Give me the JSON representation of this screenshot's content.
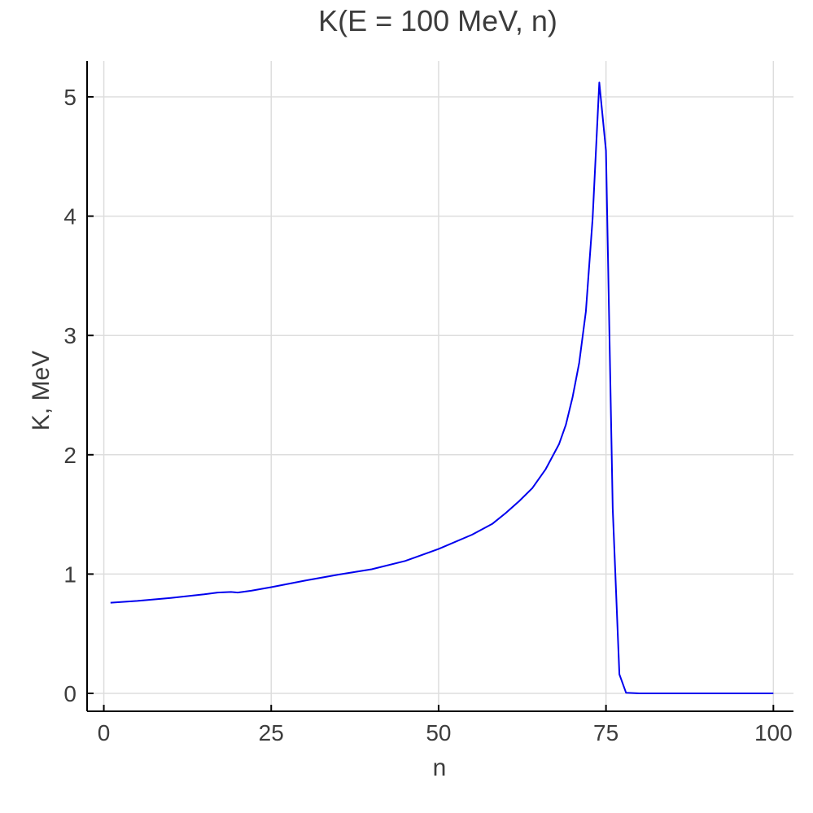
{
  "chart_data": {
    "type": "line",
    "title": "K(E = 100 MeV, n)",
    "xlabel": "n",
    "ylabel": "K, MeV",
    "xlim": [
      -2.5,
      103
    ],
    "ylim": [
      -0.15,
      5.3
    ],
    "grid": true,
    "x_ticks": [
      0,
      25,
      50,
      75,
      100
    ],
    "x_tick_labels": [
      "0",
      "25",
      "50",
      "75",
      "100"
    ],
    "y_ticks": [
      0,
      1,
      2,
      3,
      4,
      5
    ],
    "y_tick_labels": [
      "0",
      "1",
      "2",
      "3",
      "4",
      "5"
    ],
    "series": [
      {
        "color": "#0000ee",
        "x": [
          1,
          5,
          10,
          15,
          17,
          19,
          20,
          22,
          25,
          30,
          35,
          40,
          45,
          50,
          55,
          58,
          60,
          62,
          64,
          66,
          68,
          69,
          70,
          71,
          72,
          73,
          74,
          75,
          76,
          77,
          78,
          80,
          90,
          100
        ],
        "y": [
          0.76,
          0.775,
          0.8,
          0.83,
          0.845,
          0.85,
          0.845,
          0.86,
          0.89,
          0.945,
          0.995,
          1.04,
          1.11,
          1.21,
          1.33,
          1.42,
          1.51,
          1.61,
          1.72,
          1.88,
          2.09,
          2.25,
          2.48,
          2.77,
          3.2,
          3.98,
          5.12,
          4.55,
          1.55,
          0.16,
          0.005,
          0.0,
          0.0,
          0.0
        ]
      }
    ]
  }
}
